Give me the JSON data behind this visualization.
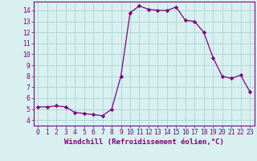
{
  "x": [
    0,
    1,
    2,
    3,
    4,
    5,
    6,
    7,
    8,
    9,
    10,
    11,
    12,
    13,
    14,
    15,
    16,
    17,
    18,
    19,
    20,
    21,
    22,
    23
  ],
  "y": [
    5.2,
    5.2,
    5.3,
    5.2,
    4.7,
    4.6,
    4.5,
    4.4,
    5.0,
    8.0,
    13.8,
    14.4,
    14.1,
    14.0,
    14.0,
    14.3,
    13.1,
    13.0,
    12.0,
    9.7,
    8.0,
    7.8,
    8.1,
    6.6
  ],
  "line_color": "#800080",
  "marker": "D",
  "marker_size": 2.2,
  "bg_color": "#d8f0f0",
  "grid_color": "#b0d8d8",
  "xlabel": "Windchill (Refroidissement éolien,°C)",
  "xlim": [
    -0.5,
    23.5
  ],
  "ylim": [
    3.5,
    14.8
  ],
  "yticks": [
    4,
    5,
    6,
    7,
    8,
    9,
    10,
    11,
    12,
    13,
    14
  ],
  "xticks": [
    0,
    1,
    2,
    3,
    4,
    5,
    6,
    7,
    8,
    9,
    10,
    11,
    12,
    13,
    14,
    15,
    16,
    17,
    18,
    19,
    20,
    21,
    22,
    23
  ],
  "tick_color": "#800080",
  "label_color": "#800080",
  "spine_color": "#800080",
  "xlabel_fontsize": 6.5,
  "tick_fontsize": 5.8,
  "linewidth": 0.9
}
